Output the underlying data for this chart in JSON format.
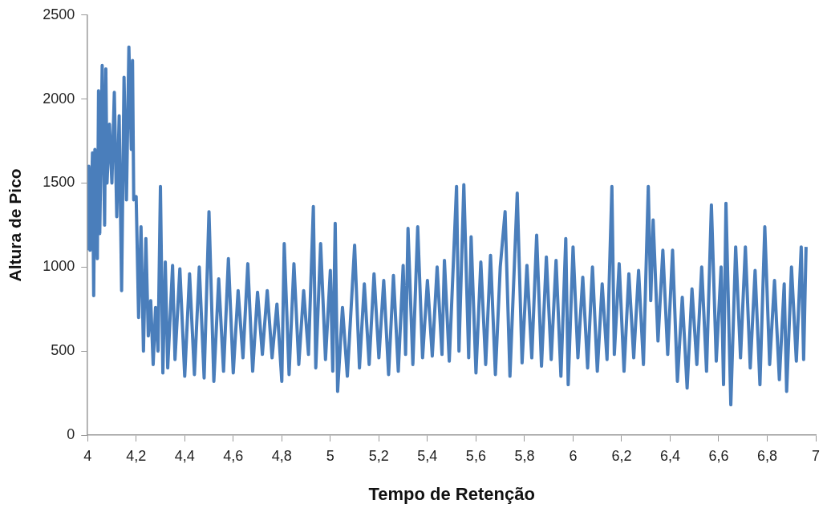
{
  "chart_data": {
    "type": "line",
    "xlabel": "Tempo de Retenção",
    "ylabel": "Altura de Pico",
    "color": "#4a7ebb",
    "grid": false,
    "legend": false,
    "marker": "none",
    "line_style": "solid",
    "xlim": [
      4,
      7
    ],
    "xticks": [
      4,
      {
        "value": 4.2,
        "label": "4,2"
      },
      {
        "value": 4.4,
        "label": "4,4"
      },
      {
        "value": 4.6,
        "label": "4,6"
      },
      {
        "value": 4.8,
        "label": "4,8"
      },
      5,
      {
        "value": 5.2,
        "label": "5,2"
      },
      {
        "value": 5.4,
        "label": "5,4"
      },
      {
        "value": 5.6,
        "label": "5,6"
      },
      {
        "value": 5.8,
        "label": "5,8"
      },
      6,
      {
        "value": 6.2,
        "label": "6,2"
      },
      {
        "value": 6.4,
        "label": "6,4"
      },
      {
        "value": 6.6,
        "label": "6,6"
      },
      {
        "value": 6.8,
        "label": "6,8"
      },
      7
    ],
    "ylim": [
      0,
      2500
    ],
    "yticks": [
      0,
      500,
      1000,
      1500,
      2000,
      2500
    ],
    "x": [
      4.0,
      4.005,
      4.01,
      4.02,
      4.025,
      4.03,
      4.04,
      4.045,
      4.05,
      4.06,
      4.07,
      4.075,
      4.08,
      4.09,
      4.1,
      4.11,
      4.12,
      4.13,
      4.14,
      4.15,
      4.16,
      4.17,
      4.18,
      4.185,
      4.19,
      4.2,
      4.21,
      4.22,
      4.23,
      4.24,
      4.25,
      4.26,
      4.27,
      4.28,
      4.29,
      4.3,
      4.31,
      4.32,
      4.33,
      4.35,
      4.36,
      4.38,
      4.4,
      4.42,
      4.44,
      4.46,
      4.48,
      4.5,
      4.52,
      4.54,
      4.56,
      4.58,
      4.6,
      4.62,
      4.64,
      4.66,
      4.68,
      4.7,
      4.72,
      4.74,
      4.76,
      4.78,
      4.8,
      4.81,
      4.83,
      4.85,
      4.87,
      4.89,
      4.91,
      4.93,
      4.94,
      4.96,
      4.98,
      5.0,
      5.01,
      5.02,
      5.03,
      5.05,
      5.07,
      5.1,
      5.12,
      5.14,
      5.16,
      5.18,
      5.2,
      5.22,
      5.24,
      5.26,
      5.28,
      5.3,
      5.31,
      5.32,
      5.34,
      5.36,
      5.38,
      5.4,
      5.42,
      5.44,
      5.46,
      5.47,
      5.49,
      5.52,
      5.53,
      5.55,
      5.57,
      5.58,
      5.6,
      5.62,
      5.64,
      5.66,
      5.68,
      5.7,
      5.72,
      5.74,
      5.77,
      5.79,
      5.81,
      5.83,
      5.85,
      5.87,
      5.89,
      5.91,
      5.93,
      5.95,
      5.97,
      5.98,
      6.0,
      6.02,
      6.04,
      6.06,
      6.08,
      6.1,
      6.12,
      6.14,
      6.16,
      6.17,
      6.19,
      6.21,
      6.23,
      6.25,
      6.27,
      6.29,
      6.31,
      6.32,
      6.33,
      6.35,
      6.37,
      6.39,
      6.41,
      6.43,
      6.45,
      6.47,
      6.49,
      6.51,
      6.53,
      6.55,
      6.57,
      6.59,
      6.61,
      6.62,
      6.63,
      6.65,
      6.67,
      6.69,
      6.71,
      6.73,
      6.75,
      6.77,
      6.79,
      6.81,
      6.83,
      6.85,
      6.87,
      6.88,
      6.9,
      6.92,
      6.94,
      6.95,
      6.96
    ],
    "values": [
      1100,
      1600,
      1100,
      1680,
      830,
      1700,
      1050,
      2050,
      1200,
      2200,
      1250,
      2180,
      1500,
      1850,
      1500,
      2040,
      1300,
      1900,
      860,
      2130,
      1400,
      2310,
      1700,
      2230,
      1400,
      1420,
      700,
      1240,
      500,
      1170,
      590,
      800,
      420,
      760,
      500,
      1480,
      370,
      1030,
      400,
      1010,
      450,
      990,
      350,
      960,
      360,
      1000,
      340,
      1330,
      320,
      930,
      380,
      1050,
      370,
      860,
      460,
      1020,
      380,
      850,
      480,
      860,
      460,
      780,
      320,
      1140,
      360,
      1020,
      420,
      860,
      480,
      1360,
      400,
      1140,
      450,
      980,
      380,
      1260,
      260,
      760,
      350,
      1130,
      400,
      900,
      420,
      960,
      460,
      920,
      360,
      950,
      380,
      1010,
      480,
      1230,
      420,
      1240,
      460,
      920,
      470,
      1000,
      480,
      1040,
      440,
      1480,
      500,
      1490,
      460,
      1180,
      370,
      1030,
      420,
      1070,
      360,
      1000,
      1330,
      350,
      1440,
      430,
      1010,
      460,
      1190,
      410,
      1060,
      450,
      1040,
      350,
      1170,
      300,
      1120,
      460,
      940,
      400,
      1000,
      380,
      900,
      450,
      1480,
      480,
      1020,
      380,
      960,
      460,
      980,
      420,
      1480,
      800,
      1280,
      560,
      1100,
      480,
      1100,
      320,
      820,
      280,
      870,
      420,
      1000,
      380,
      1370,
      440,
      1000,
      300,
      1380,
      180,
      1120,
      460,
      1120,
      400,
      980,
      300,
      1240,
      420,
      920,
      330,
      900,
      260,
      1000,
      440,
      1120,
      450,
      1120
    ]
  }
}
